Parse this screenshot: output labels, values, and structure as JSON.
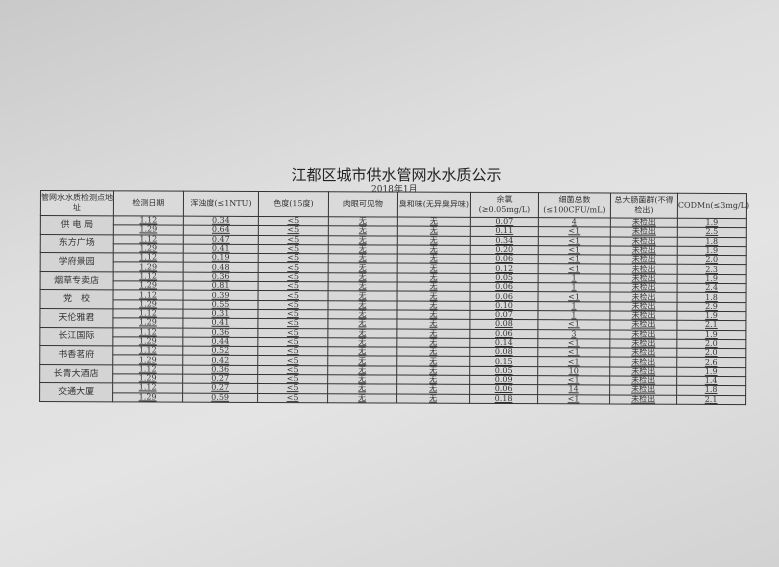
{
  "title": "江都区城市供水管网水水质公示",
  "subtitle": "2018年1月",
  "headers": [
    "管网水水质检测点地址",
    "检测日期",
    "浑浊度(≤1NTU)",
    "色度(15度)",
    "肉眼可见物",
    "臭和味(无异臭异味)",
    "余氯(≥0.05mg/L)",
    "细菌总数(≤100CFU/mL)",
    "总大肠菌群(不得检出)",
    "CODMn(≤3mg/L)"
  ],
  "sites": [
    {
      "name": "供 电 局",
      "rows": [
        [
          "1.12",
          "0.34",
          "<5",
          "无",
          "无",
          "0.07",
          "4",
          "未检出",
          "1.9"
        ],
        [
          "1.29",
          "0.64",
          "<5",
          "无",
          "无",
          "0.11",
          "<1",
          "未检出",
          "2.5"
        ]
      ]
    },
    {
      "name": "东方广场",
      "rows": [
        [
          "1.12",
          "0.47",
          "<5",
          "无",
          "无",
          "0.34",
          "<1",
          "未检出",
          "1.8"
        ],
        [
          "1.29",
          "0.41",
          "<5",
          "无",
          "无",
          "0.20",
          "<1",
          "未检出",
          "1.9"
        ]
      ]
    },
    {
      "name": "学府景园",
      "rows": [
        [
          "1.12",
          "0.19",
          "<5",
          "无",
          "无",
          "0.06",
          "<1",
          "未检出",
          "2.0"
        ],
        [
          "1.29",
          "0.48",
          "<5",
          "无",
          "无",
          "0.12",
          "<1",
          "未检出",
          "2.3"
        ]
      ]
    },
    {
      "name": "烟草专卖店",
      "rows": [
        [
          "1.12",
          "0.36",
          "<5",
          "无",
          "无",
          "0.05",
          "1",
          "未检出",
          "1.9"
        ],
        [
          "1.29",
          "0.81",
          "<5",
          "无",
          "无",
          "0.06",
          "1",
          "未检出",
          "2.4"
        ]
      ]
    },
    {
      "name": "党　校",
      "rows": [
        [
          "1.12",
          "0.39",
          "<5",
          "无",
          "无",
          "0.06",
          "<1",
          "未检出",
          "1.8"
        ],
        [
          "1.29",
          "0.55",
          "<5",
          "无",
          "无",
          "0.10",
          "1",
          "未检出",
          "2.9"
        ]
      ]
    },
    {
      "name": "天伦雅君",
      "rows": [
        [
          "1.12",
          "0.31",
          "<5",
          "无",
          "无",
          "0.07",
          "1",
          "未检出",
          "1.9"
        ],
        [
          "1.29",
          "0.41",
          "<5",
          "无",
          "无",
          "0.08",
          "<1",
          "未检出",
          "2.1"
        ]
      ]
    },
    {
      "name": "长江国际",
      "rows": [
        [
          "1.12",
          "0.36",
          "<5",
          "无",
          "无",
          "0.06",
          "3",
          "未检出",
          "1.9"
        ],
        [
          "1.29",
          "0.44",
          "<5",
          "无",
          "无",
          "0.14",
          "<1",
          "未检出",
          "2.0"
        ]
      ]
    },
    {
      "name": "书香茗府",
      "rows": [
        [
          "1.12",
          "0.52",
          "<5",
          "无",
          "无",
          "0.08",
          "<1",
          "未检出",
          "2.0"
        ],
        [
          "1.29",
          "0.42",
          "<5",
          "无",
          "无",
          "0.15",
          "<1",
          "未检出",
          "2.6"
        ]
      ]
    },
    {
      "name": "长青大酒店",
      "rows": [
        [
          "1.12",
          "0.36",
          "<5",
          "无",
          "无",
          "0.05",
          "10",
          "未检出",
          "1.9"
        ],
        [
          "1.29",
          "0.27",
          "<5",
          "无",
          "无",
          "0.09",
          "<1",
          "未检出",
          "1.4"
        ]
      ]
    },
    {
      "name": "交通大厦",
      "rows": [
        [
          "1.12",
          "0.27",
          "<5",
          "无",
          "无",
          "0.06",
          "14",
          "未检出",
          "1.8"
        ],
        [
          "1.29",
          "0.59",
          "<5",
          "无",
          "无",
          "0.18",
          "<1",
          "未检出",
          "2.1"
        ]
      ]
    }
  ]
}
